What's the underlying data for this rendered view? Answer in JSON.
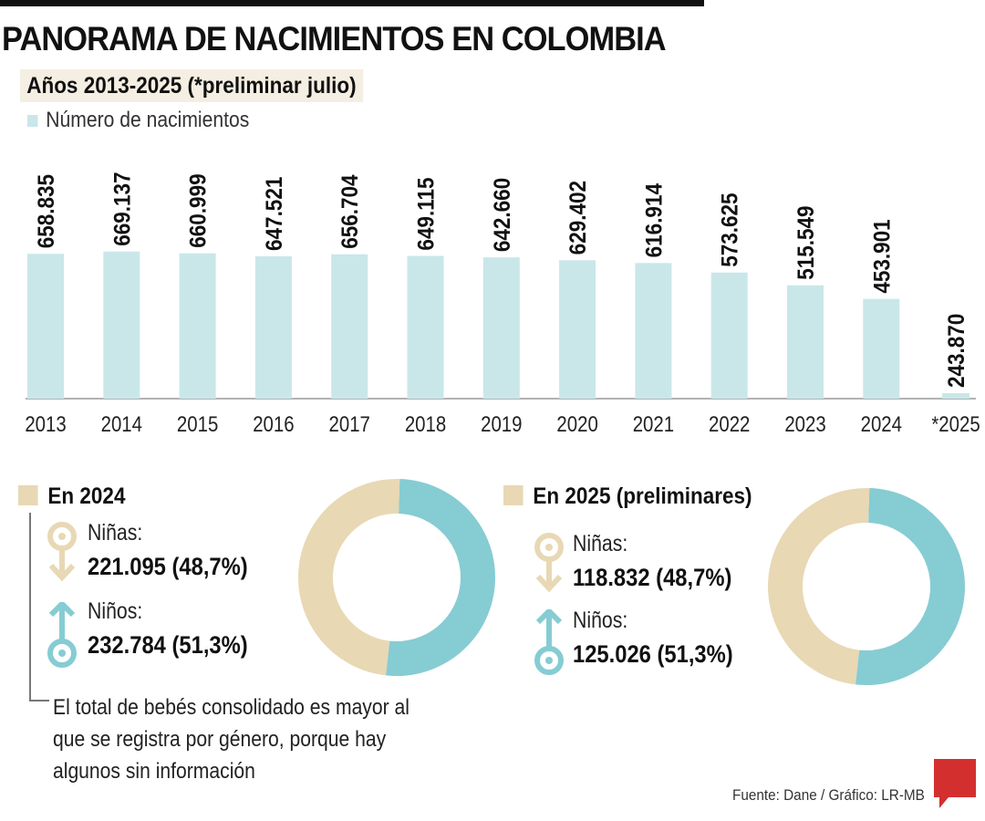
{
  "title": "PANORAMA DE NACIMIENTOS EN COLOMBIA",
  "subtitle": "Años 2013-2025 (*preliminar julio)",
  "colors": {
    "bar": "#c9e7e9",
    "girls": "#e8d8b4",
    "boys": "#86ccd3",
    "brand": "#d32f2f"
  },
  "chart_data": [
    {
      "type": "bar",
      "categories": [
        "2013",
        "2014",
        "2015",
        "2016",
        "2017",
        "2018",
        "2019",
        "2020",
        "2021",
        "2022",
        "2023",
        "2024",
        "*2025"
      ],
      "series": [
        {
          "name": "Número de nacimientos",
          "values": [
            658835,
            669137,
            660999,
            647521,
            656704,
            649115,
            642660,
            629402,
            616914,
            573625,
            515549,
            453901,
            243870
          ]
        }
      ],
      "data_labels": [
        "658.835",
        "669.137",
        "660.999",
        "647.521",
        "656.704",
        "649.115",
        "642.660",
        "629.402",
        "616.914",
        "573.625",
        "515.549",
        "453.901",
        "243.870"
      ],
      "grid": false,
      "legend": "top-left"
    },
    {
      "type": "pie",
      "title": "En 2024",
      "donut": true,
      "slices": [
        {
          "name": "Niños",
          "value": 232784,
          "percent": 51.3
        },
        {
          "name": "Niñas",
          "value": 221095,
          "percent": 48.7
        }
      ]
    },
    {
      "type": "pie",
      "title": "En 2025 (preliminares)",
      "donut": true,
      "slices": [
        {
          "name": "Niños",
          "value": 125026,
          "percent": 51.3
        },
        {
          "name": "Niñas",
          "value": 118832,
          "percent": 48.7
        }
      ]
    }
  ],
  "y2024": {
    "title": "En 2024",
    "girls_label": "Niñas:",
    "girls_value": "221.095 (48,7%)",
    "boys_label": "Niños:",
    "boys_value": "232.784 (51,3%)"
  },
  "y2025": {
    "title": "En 2025 (preliminares)",
    "girls_label": "Niñas:",
    "girls_value": "118.832 (48,7%)",
    "boys_label": "Niños:",
    "boys_value": "125.026 (51,3%)"
  },
  "note": "El total de bebés consolidado es mayor al que se registra por género, porque hay algunos sin información",
  "source": "Fuente: Dane / Gráfico: LR-MB",
  "logo": "LR"
}
